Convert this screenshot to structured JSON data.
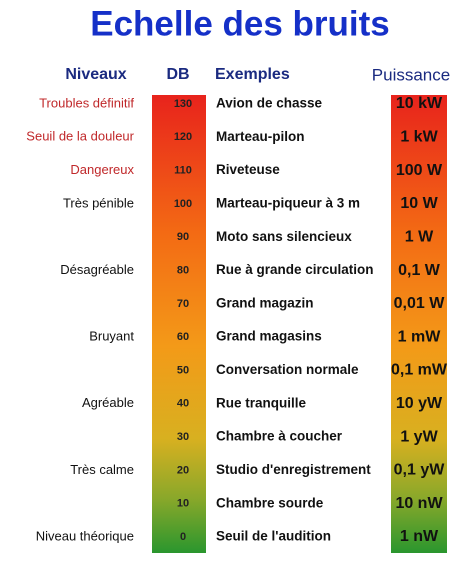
{
  "title": "Echelle des bruits",
  "headers": {
    "levels": "Niveaux",
    "db": "DB",
    "examples": "Exemples",
    "power": "Puissance"
  },
  "rows": [
    {
      "level": "Troubles définitif",
      "level_color": "#c0282a",
      "db": "130",
      "example": "Avion de chasse",
      "power": "10 kW"
    },
    {
      "level": "Seuil de la douleur",
      "level_color": "#c0282a",
      "db": "120",
      "example": "Marteau-pilon",
      "power": "1 kW"
    },
    {
      "level": "Dangereux",
      "level_color": "#c0282a",
      "db": "110",
      "example": "Riveteuse",
      "power": "100 W"
    },
    {
      "level": "Très pénible",
      "level_color": "#111111",
      "db": "100",
      "example": "Marteau-piqueur à 3 m",
      "power": "10 W"
    },
    {
      "db": "90",
      "example": "Moto sans silencieux",
      "power": "1 W"
    },
    {
      "level": "Désagréable",
      "level_color": "#111111",
      "db": "80",
      "example": "Rue à grande circulation",
      "power": "0,1 W"
    },
    {
      "db": "70",
      "example": "Grand magazin",
      "power": "0,01 W"
    },
    {
      "level": "Bruyant",
      "level_color": "#111111",
      "db": "60",
      "example": "Grand magasins",
      "power": "1 mW"
    },
    {
      "db": "50",
      "example": "Conversation normale",
      "power": "0,1 mW"
    },
    {
      "level": "Agréable",
      "level_color": "#111111",
      "db": "40",
      "example": "Rue tranquille",
      "power": "10 yW"
    },
    {
      "db": "30",
      "example": "Chambre à coucher",
      "power": "1 yW"
    },
    {
      "level": "Très calme",
      "level_color": "#111111",
      "db": "20",
      "example": "Studio d'enregistrement",
      "power": "0,1 yW"
    },
    {
      "db": "10",
      "example": "Chambre sourde",
      "power": "10 nW"
    },
    {
      "level": "Niveau théorique",
      "level_color": "#111111",
      "db": "0",
      "example": "Seuil de l'audition",
      "power": "1 nW"
    }
  ]
}
